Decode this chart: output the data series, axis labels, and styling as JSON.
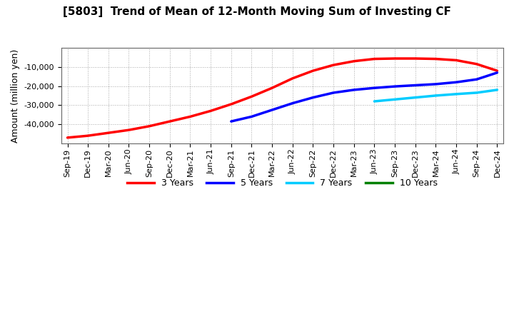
{
  "title": "[5803]  Trend of Mean of 12-Month Moving Sum of Investing CF",
  "ylabel": "Amount (million yen)",
  "ylim": [
    -50000,
    0
  ],
  "yticks": [
    -10000,
    -20000,
    -30000,
    -40000
  ],
  "background_color": "#ffffff",
  "grid_color": "#aaaaaa",
  "xtick_labels": [
    "Sep-19",
    "Dec-19",
    "Mar-20",
    "Jun-20",
    "Sep-20",
    "Dec-20",
    "Mar-21",
    "Jun-21",
    "Sep-21",
    "Dec-21",
    "Mar-22",
    "Jun-22",
    "Sep-22",
    "Dec-22",
    "Mar-23",
    "Jun-23",
    "Sep-23",
    "Dec-23",
    "Mar-24",
    "Jun-24",
    "Sep-24",
    "Dec-24"
  ],
  "series_3y": {
    "color": "#ff0000",
    "label": "3 Years",
    "x_indices": [
      0,
      1,
      2,
      3,
      4,
      5,
      6,
      7,
      8,
      9,
      10,
      11,
      12,
      13,
      14,
      15,
      16,
      17,
      18,
      19,
      20,
      21
    ],
    "values": [
      -47000,
      -46000,
      -44500,
      -43000,
      -41000,
      -38500,
      -36000,
      -33000,
      -29500,
      -25500,
      -21000,
      -16000,
      -12000,
      -9000,
      -7000,
      -5800,
      -5600,
      -5600,
      -5800,
      -6500,
      -8500,
      -12000
    ]
  },
  "series_5y": {
    "color": "#0000ff",
    "label": "5 Years",
    "x_indices": [
      8,
      9,
      10,
      11,
      12,
      13,
      14,
      15,
      16,
      17,
      18,
      19,
      20,
      21
    ],
    "values": [
      -38500,
      -36000,
      -32500,
      -29000,
      -26000,
      -23500,
      -22000,
      -21000,
      -20200,
      -19600,
      -19000,
      -18000,
      -16500,
      -13000
    ]
  },
  "series_7y": {
    "color": "#00ccff",
    "label": "7 Years",
    "x_indices": [
      15,
      16,
      17,
      18,
      19,
      20,
      21
    ],
    "values": [
      -28000,
      -27000,
      -26000,
      -25000,
      -24200,
      -23500,
      -22000
    ]
  },
  "series_10y": {
    "color": "#008000",
    "label": "10 Years",
    "x_indices": [],
    "values": []
  },
  "legend_items": [
    {
      "label": "3 Years",
      "color": "#ff0000"
    },
    {
      "label": "5 Years",
      "color": "#0000ff"
    },
    {
      "label": "7 Years",
      "color": "#00ccff"
    },
    {
      "label": "10 Years",
      "color": "#008000"
    }
  ]
}
